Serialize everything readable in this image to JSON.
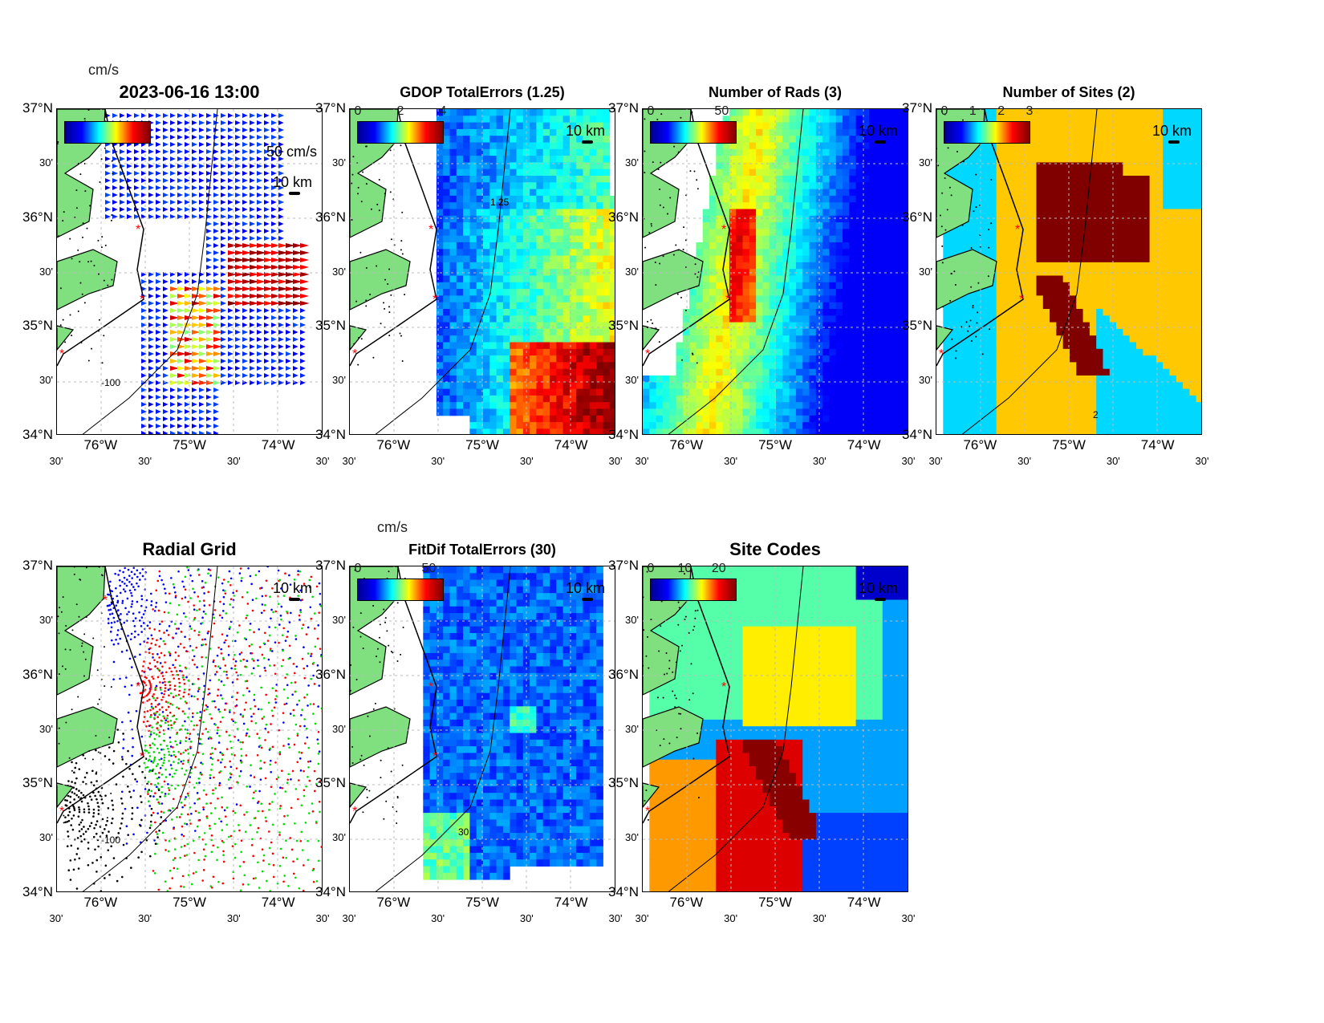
{
  "axes": {
    "lat_labels": [
      "37°N",
      "30'",
      "36°N",
      "30'",
      "35°N",
      "30'",
      "34°N"
    ],
    "lon_labels": [
      "30'",
      "76°W",
      "30'",
      "75°W",
      "30'",
      "74°W",
      "30'"
    ]
  },
  "scale_label": "10 km",
  "chart_data": [
    {
      "type": "vector",
      "id": "vectors",
      "title": "2023-06-16 13:00",
      "colorbar_unit": "cm/s",
      "reference_vector": "50 cm/s",
      "contour_label": "-100"
    },
    {
      "type": "heatmap",
      "id": "gdop",
      "title": "GDOP TotalErrors (1.25)",
      "colorbar_ticks": [
        "0",
        "2",
        "4"
      ],
      "clim": [
        0,
        4
      ],
      "contour_label": "1.25"
    },
    {
      "type": "heatmap",
      "id": "rads",
      "title": "Number of Rads (3)",
      "colorbar_ticks": [
        "0",
        "50"
      ],
      "clim": [
        0,
        60
      ]
    },
    {
      "type": "heatmap",
      "id": "sites",
      "title": "Number of Sites (2)",
      "colorbar_ticks": [
        "0",
        "1",
        "2",
        "3"
      ],
      "clim": [
        0,
        3
      ],
      "contour_label": "2"
    },
    {
      "type": "scatter",
      "id": "radial",
      "title": "Radial Grid",
      "contour_label": "-100"
    },
    {
      "type": "heatmap",
      "id": "fitdif",
      "title": "FitDif TotalErrors (30)",
      "colorbar_unit": "cm/s",
      "colorbar_ticks": [
        "0",
        "50"
      ],
      "clim": [
        0,
        60
      ],
      "contour_label": "30"
    },
    {
      "type": "heatmap",
      "id": "codes",
      "title": "Site Codes",
      "colorbar_ticks": [
        "0",
        "10",
        "20"
      ],
      "clim": [
        0,
        25
      ]
    }
  ]
}
